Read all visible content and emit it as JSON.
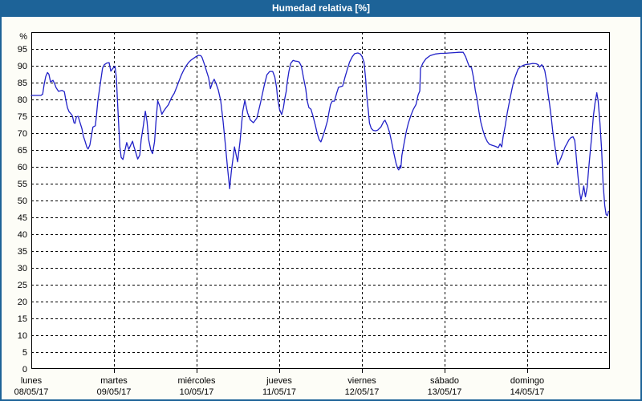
{
  "window": {
    "title": "Humedad relativa [%]"
  },
  "colors": {
    "titlebar_bg": "#1d6398",
    "window_border": "#1d6398",
    "outer_bg": "#fdfdf7",
    "plot_bg": "#ffffff",
    "plot_border": "#000000",
    "grid": "#000000",
    "line": "#2222c8"
  },
  "chart_data": {
    "type": "line",
    "title": "Humedad relativa [%]",
    "unit_label": "%",
    "ylim": [
      0,
      100
    ],
    "ytick_values": [
      0,
      5,
      10,
      15,
      20,
      25,
      30,
      35,
      40,
      45,
      50,
      55,
      60,
      65,
      70,
      75,
      80,
      85,
      90,
      95
    ],
    "grid": "dashed",
    "legend": "none",
    "hours_total": 168,
    "day_ticks_hours": [
      0,
      24,
      48,
      72,
      96,
      120,
      144
    ],
    "days": [
      {
        "name": "lunes",
        "date": "08/05/17"
      },
      {
        "name": "martes",
        "date": "09/05/17"
      },
      {
        "name": "miércoles",
        "date": "10/05/17"
      },
      {
        "name": "jueves",
        "date": "11/05/17"
      },
      {
        "name": "viernes",
        "date": "12/05/17"
      },
      {
        "name": "sábado",
        "date": "13/05/17"
      },
      {
        "name": "domingo",
        "date": "14/05/17"
      }
    ],
    "series": [
      {
        "name": "Humedad relativa",
        "color": "#2222c8",
        "points": [
          [
            0,
            81.2
          ],
          [
            1.4,
            81.2
          ],
          [
            2.8,
            81.2
          ],
          [
            3.3,
            81.6
          ],
          [
            3.7,
            84.3
          ],
          [
            4.2,
            86.8
          ],
          [
            4.7,
            88
          ],
          [
            5.1,
            87.5
          ],
          [
            5.6,
            85.2
          ],
          [
            6.3,
            85.7
          ],
          [
            6.8,
            84.6
          ],
          [
            7.2,
            83.5
          ],
          [
            7.9,
            82.4
          ],
          [
            8.9,
            82.7
          ],
          [
            9.6,
            82.3
          ],
          [
            10,
            80
          ],
          [
            10.5,
            77.5
          ],
          [
            11,
            76.3
          ],
          [
            11.4,
            75.9
          ],
          [
            11.9,
            75.2
          ],
          [
            12.4,
            73.1
          ],
          [
            12.7,
            72.9
          ],
          [
            13.1,
            74.8
          ],
          [
            13.6,
            75
          ],
          [
            14.2,
            73
          ],
          [
            14.7,
            71.3
          ],
          [
            15.1,
            69.2
          ],
          [
            15.6,
            67.6
          ],
          [
            16.1,
            65.9
          ],
          [
            16.5,
            65.3
          ],
          [
            17,
            66.5
          ],
          [
            17.5,
            69.5
          ],
          [
            17.9,
            71.8
          ],
          [
            18.6,
            72.2
          ],
          [
            18.9,
            75
          ],
          [
            19.3,
            79.3
          ],
          [
            19.8,
            83
          ],
          [
            20.3,
            86.5
          ],
          [
            20.7,
            89.3
          ],
          [
            21.2,
            90.3
          ],
          [
            21.9,
            90.8
          ],
          [
            22.6,
            90.9
          ],
          [
            23.1,
            88.4
          ],
          [
            23.5,
            89
          ],
          [
            24,
            89.6
          ],
          [
            24.3,
            89.8
          ],
          [
            24.7,
            86.5
          ],
          [
            25,
            80
          ],
          [
            25.4,
            72
          ],
          [
            25.7,
            66
          ],
          [
            26.1,
            62.8
          ],
          [
            26.6,
            62.2
          ],
          [
            27.1,
            64.5
          ],
          [
            27.7,
            67.2
          ],
          [
            28.3,
            65.2
          ],
          [
            28.9,
            66.5
          ],
          [
            29.4,
            67.6
          ],
          [
            29.8,
            66
          ],
          [
            30.3,
            64.4
          ],
          [
            30.9,
            62.3
          ],
          [
            31.5,
            63.5
          ],
          [
            31.9,
            68
          ],
          [
            32.5,
            72
          ],
          [
            33.1,
            76.5
          ],
          [
            33.6,
            73.5
          ],
          [
            34.1,
            68
          ],
          [
            34.7,
            65
          ],
          [
            35.2,
            63.9
          ],
          [
            35.8,
            67.5
          ],
          [
            36.2,
            73.5
          ],
          [
            36.7,
            79.6
          ],
          [
            37.3,
            78
          ],
          [
            37.9,
            75.6
          ],
          [
            38.4,
            76.5
          ],
          [
            39.1,
            77.5
          ],
          [
            39.8,
            78.4
          ],
          [
            40.7,
            80.5
          ],
          [
            41.5,
            81.8
          ],
          [
            42.2,
            83.6
          ],
          [
            42.9,
            85.5
          ],
          [
            43.6,
            87.3
          ],
          [
            44.3,
            88.8
          ],
          [
            45,
            90
          ],
          [
            45.7,
            91
          ],
          [
            46.4,
            91.7
          ],
          [
            47.1,
            92.2
          ],
          [
            47.8,
            92.7
          ],
          [
            48.5,
            93.1
          ],
          [
            49.2,
            93
          ],
          [
            49.6,
            92.4
          ],
          [
            50.3,
            90.3
          ],
          [
            51,
            88
          ],
          [
            51.5,
            86.4
          ],
          [
            52,
            83.2
          ],
          [
            52.6,
            85
          ],
          [
            53.1,
            86
          ],
          [
            53.7,
            84.5
          ],
          [
            54.3,
            82.8
          ],
          [
            55,
            79.7
          ],
          [
            55.7,
            73.5
          ],
          [
            56.4,
            65.9
          ],
          [
            57,
            59.5
          ],
          [
            57.6,
            53.5
          ],
          [
            58.1,
            58.7
          ],
          [
            59,
            65.9
          ],
          [
            59.9,
            61.5
          ],
          [
            60.6,
            67.5
          ],
          [
            61.4,
            76.5
          ],
          [
            62,
            79.7
          ],
          [
            62.8,
            76
          ],
          [
            63.6,
            73.9
          ],
          [
            64.5,
            73.1
          ],
          [
            65.5,
            74.5
          ],
          [
            66.6,
            79.2
          ],
          [
            67.6,
            84
          ],
          [
            68.4,
            87.3
          ],
          [
            69.2,
            88.3
          ],
          [
            70.1,
            88.3
          ],
          [
            70.7,
            86.7
          ],
          [
            71.2,
            83.6
          ],
          [
            71.5,
            80.4
          ],
          [
            72.1,
            77
          ],
          [
            72.7,
            75.5
          ],
          [
            73.2,
            77.6
          ],
          [
            73.6,
            80.3
          ],
          [
            74,
            82.3
          ],
          [
            74.3,
            85.1
          ],
          [
            74.8,
            88.3
          ],
          [
            75.3,
            90.7
          ],
          [
            76,
            91.6
          ],
          [
            76.6,
            91.4
          ],
          [
            77.3,
            91.3
          ],
          [
            77.8,
            91.1
          ],
          [
            78.4,
            89.9
          ],
          [
            79,
            86.7
          ],
          [
            79.7,
            83.1
          ],
          [
            80.1,
            79.6
          ],
          [
            80.6,
            77.6
          ],
          [
            81.2,
            77.1
          ],
          [
            81.8,
            75
          ],
          [
            82.5,
            72.2
          ],
          [
            83.1,
            69.6
          ],
          [
            83.6,
            68
          ],
          [
            84.1,
            67.4
          ],
          [
            84.8,
            69.4
          ],
          [
            85.4,
            71.5
          ],
          [
            86,
            73.7
          ],
          [
            86.4,
            76
          ],
          [
            86.9,
            78.5
          ],
          [
            87.4,
            79.5
          ],
          [
            88,
            79.5
          ],
          [
            88.7,
            82
          ],
          [
            89.2,
            83.6
          ],
          [
            90.4,
            84
          ],
          [
            91.1,
            86.7
          ],
          [
            91.8,
            89.1
          ],
          [
            92.4,
            91.1
          ],
          [
            93.2,
            92.7
          ],
          [
            93.9,
            93.6
          ],
          [
            94.8,
            93.8
          ],
          [
            95.5,
            93.5
          ],
          [
            96,
            92.8
          ],
          [
            96.6,
            91.1
          ],
          [
            97.1,
            85.9
          ],
          [
            97.4,
            81.2
          ],
          [
            97.9,
            76.1
          ],
          [
            98.2,
            73
          ],
          [
            98.7,
            71.4
          ],
          [
            99.3,
            70.8
          ],
          [
            100,
            70.7
          ],
          [
            100.6,
            70.9
          ],
          [
            101.5,
            71.8
          ],
          [
            102.3,
            73.4
          ],
          [
            102.7,
            73.8
          ],
          [
            103.4,
            72.2
          ],
          [
            104,
            70.3
          ],
          [
            104.6,
            67.5
          ],
          [
            105.3,
            63.9
          ],
          [
            105.9,
            61.1
          ],
          [
            106.4,
            59.5
          ],
          [
            106.7,
            59.1
          ],
          [
            107.1,
            60.3
          ],
          [
            107.3,
            59.6
          ],
          [
            107.6,
            63.4
          ],
          [
            108.3,
            67.3
          ],
          [
            108.9,
            70.6
          ],
          [
            109.5,
            73
          ],
          [
            110.2,
            75.2
          ],
          [
            110.9,
            77
          ],
          [
            111.7,
            78.5
          ],
          [
            112.3,
            81.3
          ],
          [
            112.8,
            82.5
          ],
          [
            113,
            89.2
          ],
          [
            113.7,
            90.8
          ],
          [
            114.6,
            92.1
          ],
          [
            115.8,
            93
          ],
          [
            117.4,
            93.5
          ],
          [
            118.8,
            93.7
          ],
          [
            120,
            93.7
          ],
          [
            121.4,
            93.8
          ],
          [
            122.8,
            93.9
          ],
          [
            124.2,
            94
          ],
          [
            125.4,
            94
          ],
          [
            126.1,
            92.7
          ],
          [
            126.7,
            91
          ],
          [
            127.2,
            89.7
          ],
          [
            127.8,
            89.5
          ],
          [
            128.4,
            86.4
          ],
          [
            128.9,
            82.8
          ],
          [
            129.5,
            79.7
          ],
          [
            130,
            76.3
          ],
          [
            130.5,
            73.3
          ],
          [
            131.1,
            71
          ],
          [
            131.7,
            69
          ],
          [
            132.4,
            67.5
          ],
          [
            133,
            66.7
          ],
          [
            133.8,
            66.4
          ],
          [
            134.7,
            66.1
          ],
          [
            135.6,
            65.7
          ],
          [
            136.1,
            66.8
          ],
          [
            136.6,
            65.9
          ],
          [
            137,
            69
          ],
          [
            137.6,
            72.1
          ],
          [
            138.2,
            76
          ],
          [
            138.9,
            79.7
          ],
          [
            139.5,
            82.8
          ],
          [
            140.1,
            85.6
          ],
          [
            140.8,
            87.6
          ],
          [
            141.3,
            88.9
          ],
          [
            142,
            89.7
          ],
          [
            143,
            90.2
          ],
          [
            143.8,
            90.4
          ],
          [
            144.7,
            90.5
          ],
          [
            145.6,
            90.7
          ],
          [
            146.6,
            90.6
          ],
          [
            147.2,
            90.3
          ],
          [
            147.6,
            89.6
          ],
          [
            148.2,
            90.3
          ],
          [
            148.6,
            89.8
          ],
          [
            149.1,
            88.5
          ],
          [
            149.6,
            85.6
          ],
          [
            150,
            82
          ],
          [
            150.5,
            78.5
          ],
          [
            151,
            74.5
          ],
          [
            151.4,
            70.5
          ],
          [
            151.9,
            67
          ],
          [
            152.4,
            63.5
          ],
          [
            152.8,
            60.6
          ],
          [
            153.3,
            61.5
          ],
          [
            153.8,
            62.7
          ],
          [
            154.4,
            64.3
          ],
          [
            155,
            65.9
          ],
          [
            155.6,
            67
          ],
          [
            156.1,
            68
          ],
          [
            156.7,
            68.7
          ],
          [
            157.3,
            68.9
          ],
          [
            157.8,
            67.8
          ],
          [
            158.2,
            63.5
          ],
          [
            158.7,
            57.5
          ],
          [
            159.2,
            52.5
          ],
          [
            159.6,
            50.2
          ],
          [
            160.1,
            52.5
          ],
          [
            160.4,
            54.3
          ],
          [
            160.9,
            51.1
          ],
          [
            161.4,
            54
          ],
          [
            161.8,
            59
          ],
          [
            162.3,
            64.5
          ],
          [
            162.8,
            70
          ],
          [
            163.2,
            75
          ],
          [
            163.7,
            79
          ],
          [
            164.2,
            82
          ],
          [
            164.6,
            79.5
          ],
          [
            165.1,
            73
          ],
          [
            165.6,
            65
          ],
          [
            166,
            55.5
          ],
          [
            166.5,
            48.5
          ],
          [
            166.9,
            45.8
          ],
          [
            167.3,
            45.5
          ],
          [
            167.6,
            46.8
          ]
        ]
      }
    ]
  }
}
